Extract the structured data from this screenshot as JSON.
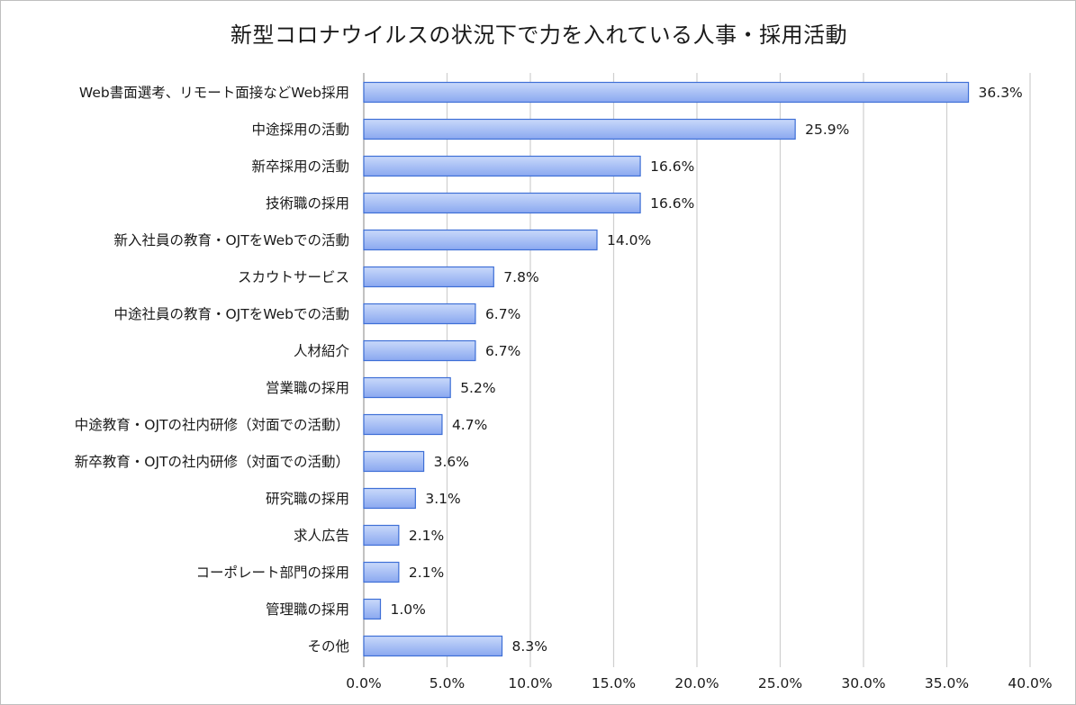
{
  "chart_data": {
    "type": "bar",
    "orientation": "horizontal",
    "title": "新型コロナウイルスの状況下で力を入れている人事・採用活動",
    "xlabel": "",
    "ylabel": "",
    "xlim": [
      0,
      40
    ],
    "grid": true,
    "colors": {
      "bar_fill_light": "#b9cdf7",
      "bar_fill_dark": "#7e9ff0",
      "bar_stroke": "#3e6fd6",
      "grid": "#cfcfcf"
    },
    "categories": [
      "Web書面選考、リモート面接などWeb採用",
      "中途採用の活動",
      "新卒採用の活動",
      "技術職の採用",
      "新入社員の教育・OJTをWebでの活動",
      "スカウトサービス",
      "中途社員の教育・OJTをWebでの活動",
      "人材紹介",
      "営業職の採用",
      "中途教育・OJTの社内研修（対面での活動）",
      "新卒教育・OJTの社内研修（対面での活動）",
      "研究職の採用",
      "求人広告",
      "コーポレート部門の採用",
      "管理職の採用",
      "その他"
    ],
    "values": [
      36.3,
      25.9,
      16.6,
      16.6,
      14.0,
      7.8,
      6.7,
      6.7,
      5.2,
      4.7,
      3.6,
      3.1,
      2.1,
      2.1,
      1.0,
      8.3
    ],
    "value_labels": [
      "36.3%",
      "25.9%",
      "16.6%",
      "16.6%",
      "14.0%",
      "7.8%",
      "6.7%",
      "6.7%",
      "5.2%",
      "4.7%",
      "3.6%",
      "3.1%",
      "2.1%",
      "2.1%",
      "1.0%",
      "8.3%"
    ],
    "x_ticks": [
      0,
      5,
      10,
      15,
      20,
      25,
      30,
      35,
      40
    ],
    "x_tick_labels": [
      "0.0%",
      "5.0%",
      "10.0%",
      "15.0%",
      "20.0%",
      "25.0%",
      "30.0%",
      "35.0%",
      "40.0%"
    ]
  }
}
